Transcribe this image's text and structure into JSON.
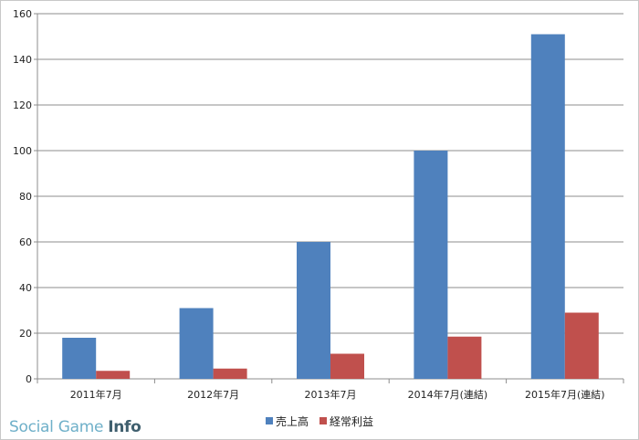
{
  "chart_data": {
    "type": "bar",
    "title": "",
    "xlabel": "",
    "ylabel": "",
    "ylim": [
      0,
      160
    ],
    "yticks": [
      0,
      20,
      40,
      60,
      80,
      100,
      120,
      140,
      160
    ],
    "grid": true,
    "legend_position": "bottom",
    "categories": [
      "2011年7月",
      "2012年7月",
      "2013年7月",
      "2014年7月(連結)",
      "2015年7月(連結)"
    ],
    "series": [
      {
        "name": "売上高",
        "color": "#4f81bd",
        "values": [
          18,
          31,
          60,
          100,
          151
        ]
      },
      {
        "name": "経常利益",
        "color": "#c0504d",
        "values": [
          3.5,
          4.5,
          11,
          18.5,
          29
        ]
      }
    ]
  },
  "watermark": {
    "main": "Social Game ",
    "accent": "Info"
  }
}
